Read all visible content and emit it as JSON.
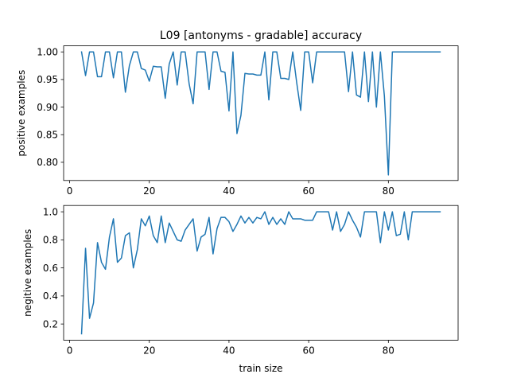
{
  "chart_data": [
    {
      "type": "line",
      "title": "L09 [antonyms - gradable] accuracy",
      "xlabel": "",
      "ylabel": "positive examples",
      "xlim": [
        -1.5,
        97.5
      ],
      "ylim": [
        0.767,
        1.011
      ],
      "xticks": [
        0,
        20,
        40,
        60,
        80
      ],
      "yticks": [
        0.8,
        0.85,
        0.9,
        0.95,
        1.0
      ],
      "ytick_labels": [
        "0.80",
        "0.85",
        "0.90",
        "0.95",
        "1.00"
      ],
      "grid": false,
      "series": [
        {
          "color": "#1f77b4",
          "x": [
            3,
            4,
            5,
            6,
            7,
            8,
            9,
            10,
            11,
            12,
            13,
            14,
            15,
            16,
            17,
            18,
            19,
            20,
            21,
            22,
            23,
            24,
            25,
            26,
            27,
            28,
            29,
            30,
            31,
            32,
            33,
            34,
            35,
            36,
            37,
            38,
            39,
            40,
            41,
            42,
            43,
            44,
            45,
            46,
            47,
            48,
            49,
            50,
            51,
            52,
            53,
            54,
            55,
            56,
            57,
            58,
            59,
            60,
            61,
            62,
            63,
            64,
            65,
            66,
            67,
            68,
            69,
            70,
            71,
            72,
            73,
            74,
            75,
            76,
            77,
            78,
            79,
            80,
            81,
            82,
            83,
            84,
            85,
            86,
            87,
            88,
            89,
            90,
            91,
            92,
            93
          ],
          "y": [
            1.0,
            0.957,
            1.0,
            1.0,
            0.955,
            0.955,
            1.0,
            1.0,
            0.953,
            1.0,
            1.0,
            0.927,
            0.975,
            1.0,
            1.0,
            0.97,
            0.967,
            0.947,
            0.974,
            0.973,
            0.973,
            0.916,
            0.978,
            1.0,
            0.94,
            1.0,
            1.0,
            0.942,
            0.906,
            1.0,
            1.0,
            1.0,
            0.932,
            1.0,
            1.0,
            0.965,
            0.963,
            0.893,
            1.0,
            0.852,
            0.885,
            0.961,
            0.96,
            0.96,
            0.958,
            0.958,
            1.0,
            0.913,
            1.0,
            1.0,
            0.952,
            0.952,
            0.95,
            1.0,
            0.944,
            0.894,
            1.0,
            1.0,
            0.944,
            1.0,
            1.0,
            1.0,
            1.0,
            1.0,
            1.0,
            1.0,
            1.0,
            0.928,
            1.0,
            0.922,
            0.918,
            1.0,
            0.91,
            1.0,
            0.9,
            1.0,
            0.92,
            0.777,
            1.0,
            1.0,
            1.0,
            1.0,
            1.0,
            1.0,
            1.0,
            1.0,
            1.0,
            1.0,
            1.0,
            1.0,
            1.0
          ]
        }
      ]
    },
    {
      "type": "line",
      "title": "",
      "xlabel": "train size",
      "ylabel": "negitive examples",
      "xlim": [
        -1.5,
        97.5
      ],
      "ylim": [
        0.085,
        1.045
      ],
      "xticks": [
        0,
        20,
        40,
        60,
        80
      ],
      "yticks": [
        0.2,
        0.4,
        0.6,
        0.8,
        1.0
      ],
      "ytick_labels": [
        "0.2",
        "0.4",
        "0.6",
        "0.8",
        "1.0"
      ],
      "grid": false,
      "series": [
        {
          "color": "#1f77b4",
          "x": [
            3,
            4,
            5,
            6,
            7,
            8,
            9,
            10,
            11,
            12,
            13,
            14,
            15,
            16,
            17,
            18,
            19,
            20,
            21,
            22,
            23,
            24,
            25,
            26,
            27,
            28,
            29,
            30,
            31,
            32,
            33,
            34,
            35,
            36,
            37,
            38,
            39,
            40,
            41,
            42,
            43,
            44,
            45,
            46,
            47,
            48,
            49,
            50,
            51,
            52,
            53,
            54,
            55,
            56,
            57,
            58,
            59,
            60,
            61,
            62,
            63,
            64,
            65,
            66,
            67,
            68,
            69,
            70,
            71,
            72,
            73,
            74,
            75,
            76,
            77,
            78,
            79,
            80,
            81,
            82,
            83,
            84,
            85,
            86,
            87,
            88,
            89,
            90,
            91,
            92,
            93
          ],
          "y": [
            0.13,
            0.74,
            0.24,
            0.35,
            0.78,
            0.64,
            0.59,
            0.82,
            0.95,
            0.64,
            0.67,
            0.83,
            0.85,
            0.6,
            0.73,
            0.95,
            0.9,
            0.97,
            0.83,
            0.78,
            0.97,
            0.78,
            0.92,
            0.86,
            0.8,
            0.79,
            0.87,
            0.91,
            0.95,
            0.72,
            0.82,
            0.84,
            0.96,
            0.7,
            0.88,
            0.96,
            0.96,
            0.93,
            0.86,
            0.91,
            0.97,
            0.92,
            0.96,
            0.92,
            0.96,
            0.95,
            1.0,
            0.91,
            0.96,
            0.91,
            0.95,
            0.91,
            1.0,
            0.95,
            0.95,
            0.95,
            0.94,
            0.94,
            0.94,
            1.0,
            1.0,
            1.0,
            1.0,
            0.87,
            1.0,
            0.86,
            0.91,
            1.0,
            0.94,
            0.89,
            0.82,
            1.0,
            1.0,
            1.0,
            1.0,
            0.78,
            1.0,
            0.87,
            1.0,
            0.83,
            0.84,
            1.0,
            0.8,
            1.0,
            1.0,
            1.0,
            1.0,
            1.0,
            1.0,
            1.0,
            1.0
          ]
        }
      ]
    }
  ]
}
